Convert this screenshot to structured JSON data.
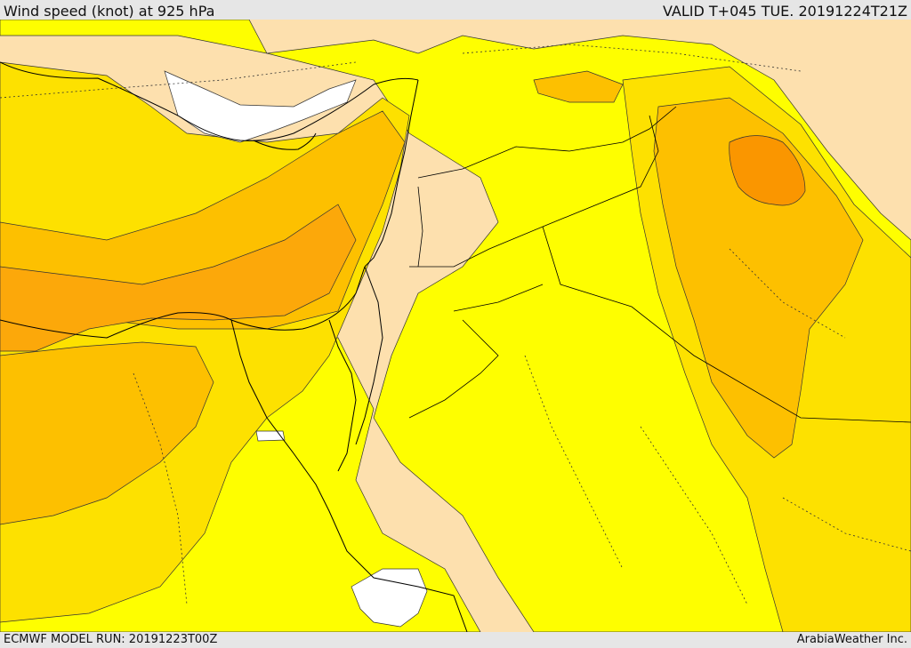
{
  "header": {
    "title": "Wind speed (knot) at 925 hPa",
    "valid": "VALID T+045 TUE. 20191224T21Z"
  },
  "footer": {
    "model_run": "ECMWF MODEL RUN: 20191223T00Z",
    "credit": "ArabiaWeather Inc."
  },
  "map": {
    "field": "wind speed",
    "level": "925 hPa",
    "units": "knot",
    "colors": {
      "calm": "#ffffff",
      "light": "#fde0ae",
      "moderate": "#fefe00",
      "fresh": "#fde100",
      "strong": "#fdc000",
      "stronger": "#fca80a",
      "strongest": "#fa9600",
      "contour": "#333333",
      "border": "#000000"
    }
  }
}
